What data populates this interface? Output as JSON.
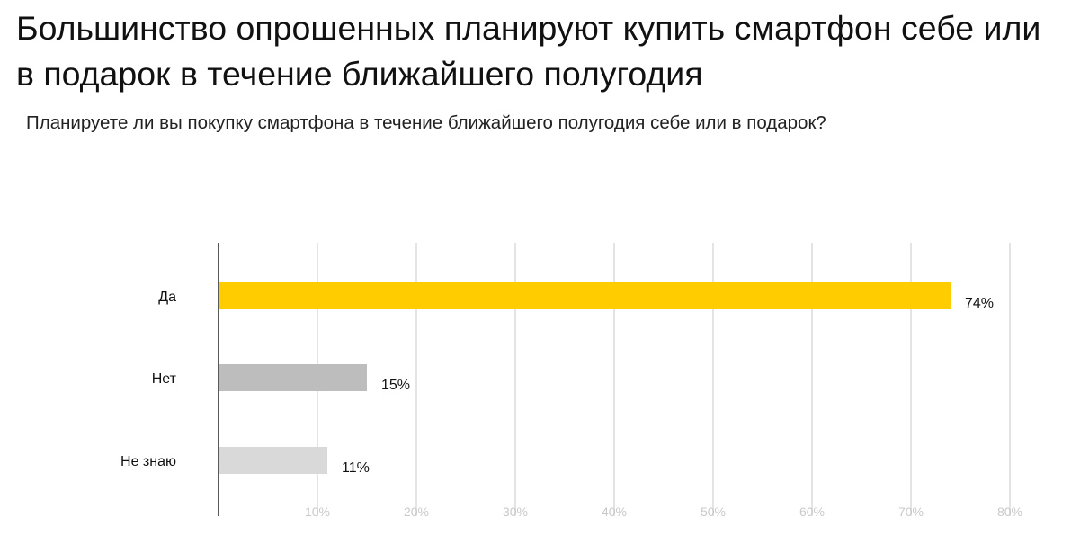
{
  "chart_data": {
    "type": "bar",
    "orientation": "horizontal",
    "title": "Большинство опрошенных планируют купить смартфон себе или в подарок в течение ближайшего полугодия",
    "subtitle": "Планируете ли вы покупку смартфона в течение ближайшего полугодия себе или в подарок?",
    "categories": [
      "Да",
      "Нет",
      "Не знаю"
    ],
    "values": [
      74,
      15,
      11
    ],
    "value_labels": [
      "74%",
      "15%",
      "11%"
    ],
    "bar_colors": [
      "#ffcc00",
      "#bdbdbd",
      "#d9d9d9"
    ],
    "xlim": [
      0,
      80
    ],
    "x_ticks": [
      10,
      20,
      30,
      40,
      50,
      60,
      70,
      80
    ],
    "x_tick_labels": [
      "10%",
      "20%",
      "30%",
      "40%",
      "50%",
      "60%",
      "70%",
      "80%"
    ],
    "grid": true,
    "legend": "none"
  }
}
